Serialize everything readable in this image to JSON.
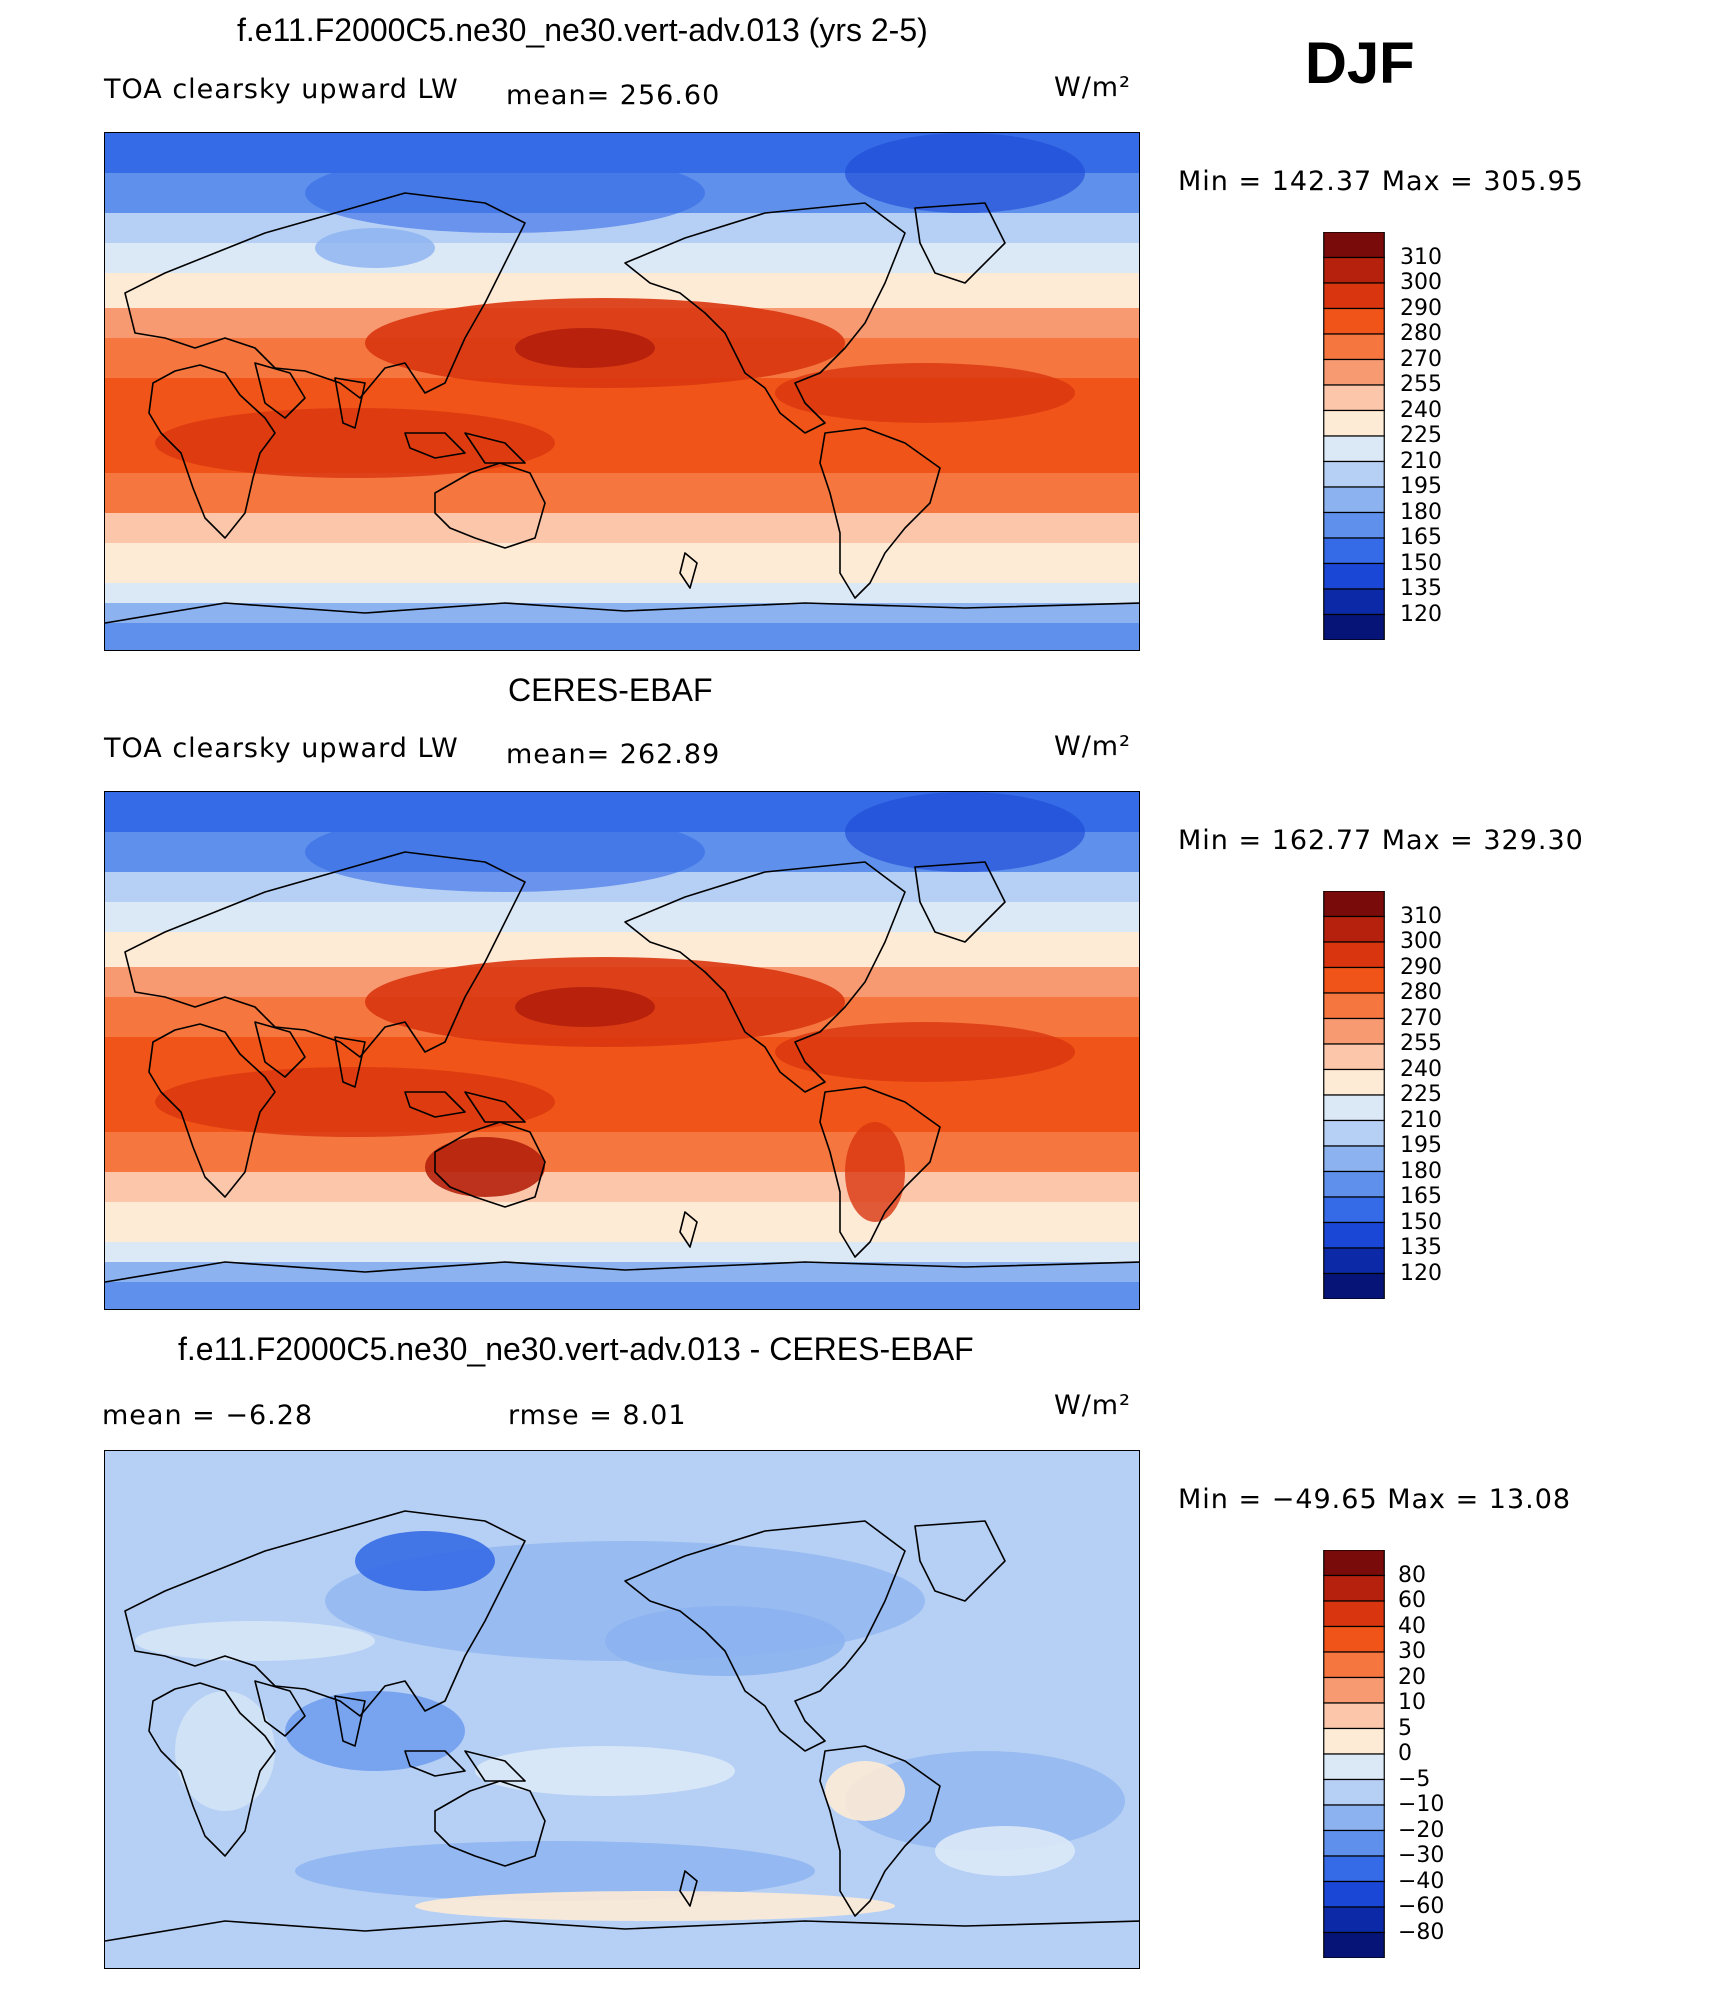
{
  "season": "DJF",
  "panels": [
    {
      "title": "f.e11.F2000C5.ne30_ne30.vert-adv.013 (yrs 2-5)",
      "variable": "TOA clearsky upward LW",
      "stat1": "mean=  256.60",
      "stat2": "",
      "units": "W/m²",
      "minmax": "Min  =  142.37  Max  =  305.95",
      "style": "model"
    },
    {
      "title": "CERES-EBAF",
      "variable": "TOA clearsky upward LW",
      "stat1": "mean=  262.89",
      "stat2": "",
      "units": "W/m²",
      "minmax": "Min  =  162.77  Max  =  329.30",
      "style": "obs"
    },
    {
      "title": "f.e11.F2000C5.ne30_ne30.vert-adv.013 - CERES-EBAF",
      "variable": "mean  =    −6.28",
      "stat1": "rmse  =     8.01",
      "stat2": "",
      "units": "W/m²",
      "minmax": "Min  =  −49.65  Max  =     13.08",
      "style": "diff"
    }
  ],
  "colorbars": {
    "absolute": {
      "labels": [
        "310",
        "300",
        "290",
        "280",
        "270",
        "255",
        "240",
        "225",
        "210",
        "195",
        "180",
        "165",
        "150",
        "135",
        "120"
      ],
      "colors": [
        "#7a0b0b",
        "#b5210c",
        "#d9360f",
        "#f05418",
        "#f5763f",
        "#f79a72",
        "#fbc6a9",
        "#fdebd6",
        "#dbe9f7",
        "#b6d0f5",
        "#8cb2f0",
        "#5e90ec",
        "#356be6",
        "#1a47d6",
        "#0c2aa8",
        "#061478"
      ]
    },
    "difference": {
      "labels": [
        "80",
        "60",
        "40",
        "30",
        "20",
        "10",
        "5",
        "0",
        "−5",
        "−10",
        "−20",
        "−30",
        "−40",
        "−60",
        "−80"
      ],
      "colors": [
        "#7a0b0b",
        "#b5210c",
        "#d9360f",
        "#f05418",
        "#f5763f",
        "#f79a72",
        "#fbc6a9",
        "#fdebd6",
        "#dbe9f7",
        "#b6d0f5",
        "#8cb2f0",
        "#5e90ec",
        "#356be6",
        "#1a47d6",
        "#0c2aa8",
        "#061478"
      ]
    }
  }
}
